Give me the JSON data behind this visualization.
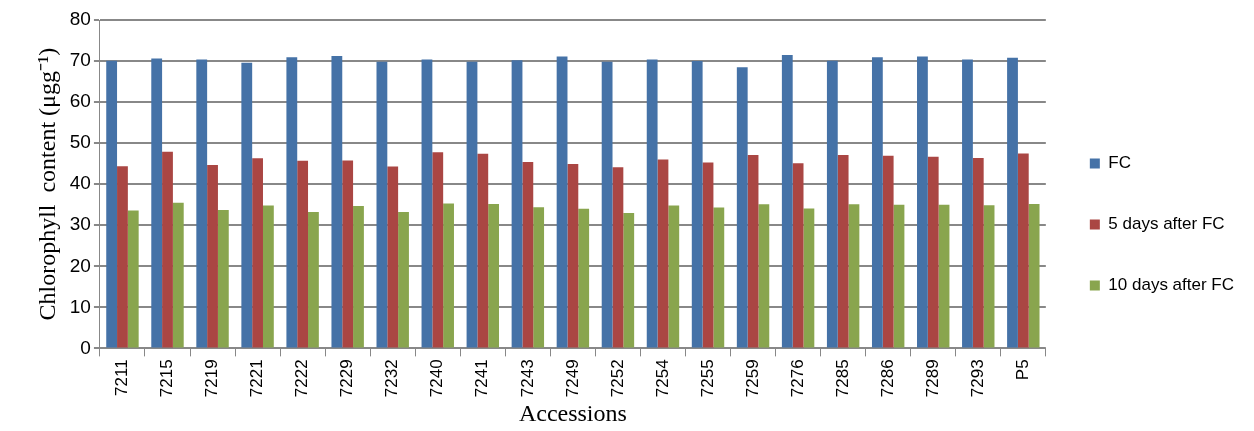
{
  "chart_data": {
    "type": "bar",
    "xlabel": "Accessions",
    "ylabel": "Chlorophyll  content (μgg⁻¹)",
    "categories": [
      "7211",
      "7215",
      "7219",
      "7221",
      "7222",
      "7229",
      "7232",
      "7240",
      "7241",
      "7243",
      "7249",
      "7252",
      "7254",
      "7255",
      "7259",
      "7276",
      "7285",
      "7286",
      "7289",
      "7293",
      "P5"
    ],
    "series": [
      {
        "name": "FC",
        "color": "#4572a7",
        "values": [
          70.1,
          70.6,
          70.4,
          69.6,
          70.9,
          71.2,
          69.8,
          70.4,
          69.8,
          70.2,
          71.1,
          69.8,
          70.4,
          70.0,
          68.5,
          71.5,
          70.1,
          70.9,
          71.1,
          70.4,
          70.8
        ]
      },
      {
        "name": "5 days after FC",
        "color": "#aa4643",
        "values": [
          44.4,
          47.9,
          44.7,
          46.3,
          45.7,
          45.8,
          44.3,
          47.8,
          47.4,
          45.4,
          44.9,
          44.1,
          46.0,
          45.3,
          47.1,
          45.1,
          47.1,
          46.9,
          46.7,
          46.4,
          47.5
        ]
      },
      {
        "name": "10 days after FC",
        "color": "#89a54e",
        "values": [
          33.6,
          35.5,
          33.7,
          34.8,
          33.2,
          34.7,
          33.2,
          35.3,
          35.2,
          34.4,
          34.0,
          33.0,
          34.8,
          34.3,
          35.1,
          34.1,
          35.1,
          35.0,
          35.0,
          34.9,
          35.2
        ]
      }
    ],
    "ylim": [
      0,
      80
    ],
    "yticks": [
      0,
      10,
      20,
      30,
      40,
      50,
      60,
      70,
      80
    ],
    "grid": "y",
    "legend": "right"
  }
}
